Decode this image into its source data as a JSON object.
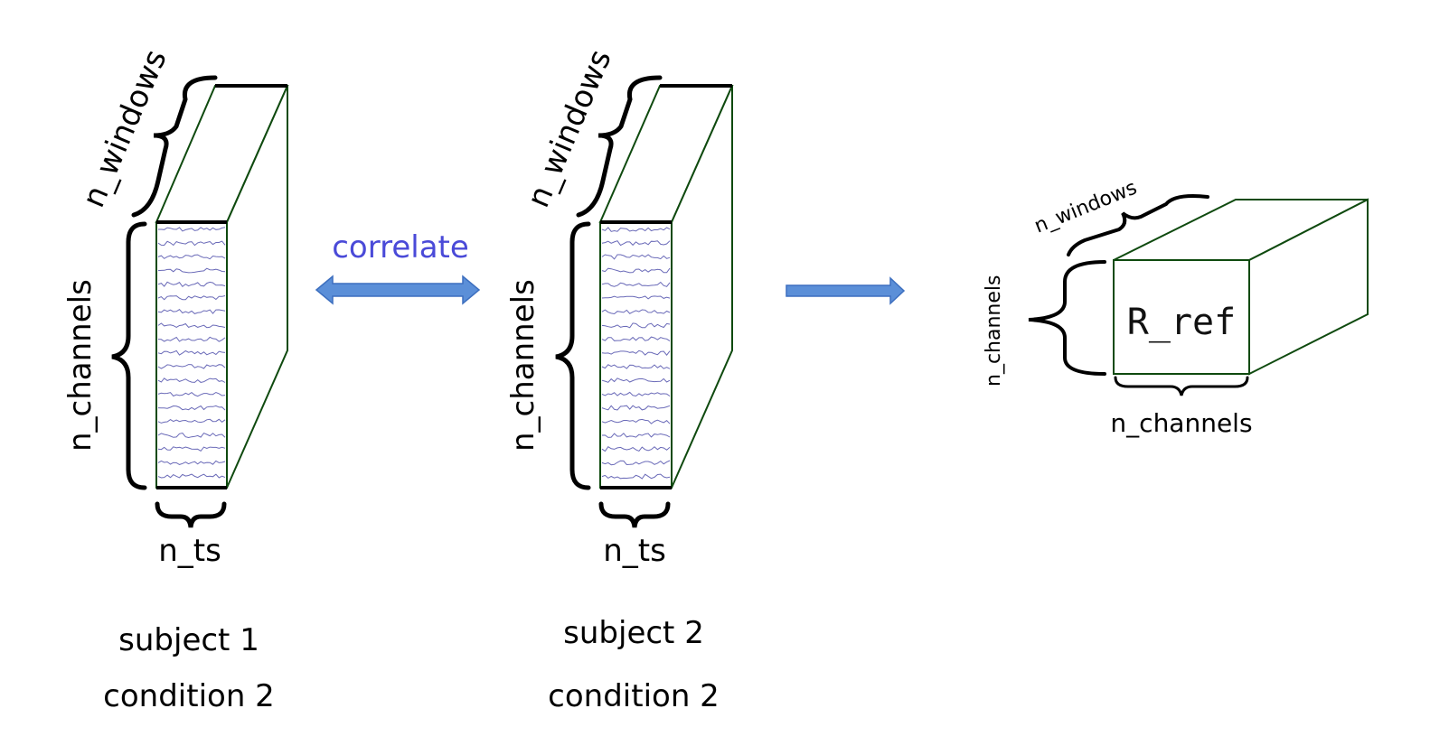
{
  "subject1": {
    "windows_label": "n_windows",
    "channels_label": "n_channels",
    "ts_label": "n_ts",
    "caption_line1": "subject 1",
    "caption_line2": "condition 2"
  },
  "subject2": {
    "windows_label": "n_windows",
    "channels_label": "n_channels",
    "ts_label": "n_ts",
    "caption_line1": "subject 2",
    "caption_line2": "condition 2"
  },
  "correlate_label": "correlate",
  "result": {
    "windows_label": "n_windows",
    "channels_left_label": "n_channels",
    "channels_bottom_label": "n_channels",
    "matrix_label": "R_ref"
  },
  "colors": {
    "box_edge": "#0f4a0f",
    "arrow_fill": "#5b8fd8",
    "arrow_stroke": "#3d6fbf",
    "correlate_text": "#4a4ad8",
    "trace": "#6a6ab8"
  },
  "icons": {
    "bidirectional_arrow": "double-arrow-icon",
    "forward_arrow": "right-arrow-icon"
  }
}
